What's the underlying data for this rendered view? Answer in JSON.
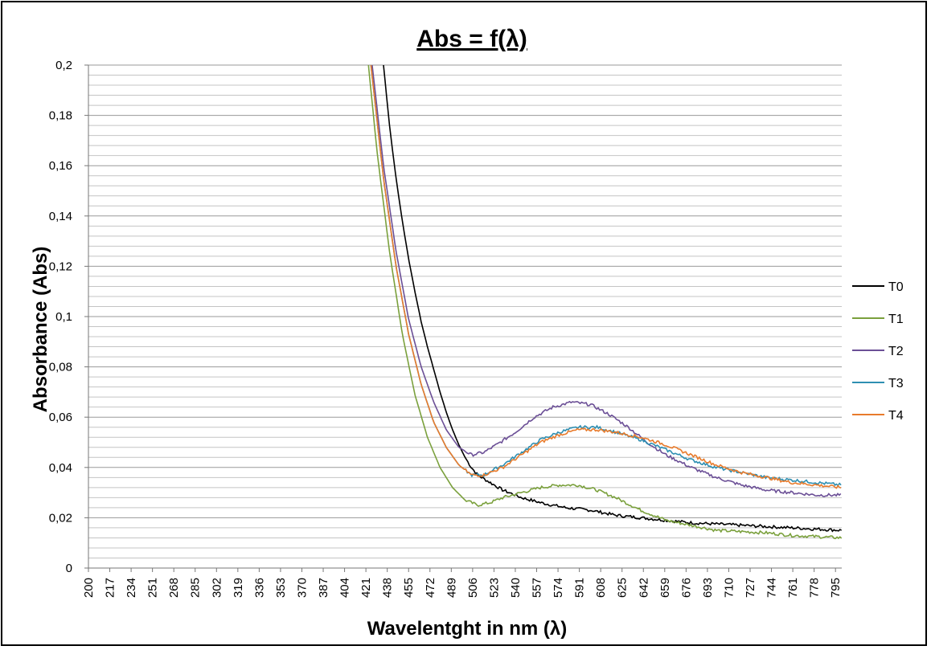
{
  "chart_data": {
    "type": "line",
    "title": "Abs = f(λ)",
    "xlabel": "Wavelentght in nm (λ)",
    "ylabel": "Absorbance (Abs)",
    "xlim": [
      200,
      800
    ],
    "ylim": [
      0,
      0.2
    ],
    "grid": true,
    "legend_position": "right",
    "x_tick_labels": [
      "200",
      "217",
      "234",
      "251",
      "268",
      "285",
      "302",
      "319",
      "336",
      "353",
      "370",
      "387",
      "404",
      "421",
      "438",
      "455",
      "472",
      "489",
      "506",
      "523",
      "540",
      "557",
      "574",
      "591",
      "608",
      "625",
      "642",
      "659",
      "676",
      "693",
      "710",
      "727",
      "744",
      "761",
      "778",
      "795"
    ],
    "y_tick_labels": [
      "0",
      "0,02",
      "0,04",
      "0,06",
      "0,08",
      "0,1",
      "0,12",
      "0,14",
      "0,16",
      "0,18",
      "0,2"
    ],
    "y_tick_values": [
      0,
      0.02,
      0.04,
      0.06,
      0.08,
      0.1,
      0.12,
      0.14,
      0.16,
      0.18,
      0.2
    ],
    "series": [
      {
        "name": "T0",
        "color": "#000000",
        "points": [
          [
            435,
            0.2
          ],
          [
            440,
            0.175
          ],
          [
            445,
            0.155
          ],
          [
            450,
            0.138
          ],
          [
            455,
            0.123
          ],
          [
            460,
            0.11
          ],
          [
            465,
            0.098
          ],
          [
            470,
            0.088
          ],
          [
            475,
            0.079
          ],
          [
            480,
            0.07
          ],
          [
            485,
            0.062
          ],
          [
            490,
            0.055
          ],
          [
            495,
            0.049
          ],
          [
            500,
            0.044
          ],
          [
            505,
            0.04
          ],
          [
            510,
            0.037
          ],
          [
            520,
            0.034
          ],
          [
            530,
            0.031
          ],
          [
            545,
            0.028
          ],
          [
            560,
            0.026
          ],
          [
            580,
            0.024
          ],
          [
            600,
            0.023
          ],
          [
            620,
            0.021
          ],
          [
            640,
            0.02
          ],
          [
            660,
            0.019
          ],
          [
            680,
            0.018
          ],
          [
            700,
            0.0175
          ],
          [
            720,
            0.017
          ],
          [
            740,
            0.0165
          ],
          [
            760,
            0.016
          ],
          [
            780,
            0.0155
          ],
          [
            800,
            0.015
          ]
        ]
      },
      {
        "name": "T1",
        "color": "#7aa03c",
        "points": [
          [
            423,
            0.2
          ],
          [
            430,
            0.165
          ],
          [
            440,
            0.125
          ],
          [
            450,
            0.093
          ],
          [
            460,
            0.069
          ],
          [
            470,
            0.052
          ],
          [
            480,
            0.04
          ],
          [
            490,
            0.032
          ],
          [
            500,
            0.027
          ],
          [
            510,
            0.025
          ],
          [
            520,
            0.026
          ],
          [
            530,
            0.028
          ],
          [
            545,
            0.03
          ],
          [
            560,
            0.032
          ],
          [
            575,
            0.033
          ],
          [
            590,
            0.033
          ],
          [
            605,
            0.031
          ],
          [
            620,
            0.028
          ],
          [
            640,
            0.023
          ],
          [
            660,
            0.019
          ],
          [
            680,
            0.017
          ],
          [
            700,
            0.015
          ],
          [
            720,
            0.0145
          ],
          [
            740,
            0.014
          ],
          [
            760,
            0.013
          ],
          [
            780,
            0.0125
          ],
          [
            800,
            0.012
          ]
        ]
      },
      {
        "name": "T2",
        "color": "#6b4f96",
        "points": [
          [
            426,
            0.2
          ],
          [
            435,
            0.16
          ],
          [
            445,
            0.126
          ],
          [
            455,
            0.099
          ],
          [
            465,
            0.08
          ],
          [
            475,
            0.066
          ],
          [
            485,
            0.055
          ],
          [
            495,
            0.048
          ],
          [
            505,
            0.045
          ],
          [
            515,
            0.046
          ],
          [
            525,
            0.049
          ],
          [
            540,
            0.054
          ],
          [
            555,
            0.06
          ],
          [
            570,
            0.064
          ],
          [
            585,
            0.066
          ],
          [
            600,
            0.065
          ],
          [
            615,
            0.061
          ],
          [
            630,
            0.056
          ],
          [
            645,
            0.05
          ],
          [
            660,
            0.045
          ],
          [
            680,
            0.04
          ],
          [
            700,
            0.036
          ],
          [
            720,
            0.033
          ],
          [
            740,
            0.031
          ],
          [
            760,
            0.03
          ],
          [
            780,
            0.029
          ],
          [
            800,
            0.029
          ]
        ]
      },
      {
        "name": "T3",
        "color": "#2e8fb2",
        "points": [
          [
            425,
            0.2
          ],
          [
            435,
            0.155
          ],
          [
            445,
            0.12
          ],
          [
            455,
            0.093
          ],
          [
            465,
            0.073
          ],
          [
            475,
            0.058
          ],
          [
            485,
            0.048
          ],
          [
            495,
            0.041
          ],
          [
            505,
            0.037
          ],
          [
            515,
            0.037
          ],
          [
            530,
            0.041
          ],
          [
            545,
            0.046
          ],
          [
            560,
            0.051
          ],
          [
            575,
            0.054
          ],
          [
            590,
            0.056
          ],
          [
            605,
            0.056
          ],
          [
            620,
            0.054
          ],
          [
            640,
            0.051
          ],
          [
            660,
            0.047
          ],
          [
            680,
            0.043
          ],
          [
            700,
            0.04
          ],
          [
            720,
            0.038
          ],
          [
            740,
            0.036
          ],
          [
            760,
            0.035
          ],
          [
            780,
            0.034
          ],
          [
            800,
            0.033
          ]
        ]
      },
      {
        "name": "T4",
        "color": "#e87b2c",
        "points": [
          [
            425,
            0.2
          ],
          [
            435,
            0.155
          ],
          [
            445,
            0.12
          ],
          [
            455,
            0.093
          ],
          [
            465,
            0.073
          ],
          [
            475,
            0.058
          ],
          [
            485,
            0.048
          ],
          [
            495,
            0.041
          ],
          [
            505,
            0.037
          ],
          [
            515,
            0.037
          ],
          [
            530,
            0.04
          ],
          [
            545,
            0.045
          ],
          [
            560,
            0.05
          ],
          [
            575,
            0.053
          ],
          [
            590,
            0.055
          ],
          [
            605,
            0.055
          ],
          [
            620,
            0.054
          ],
          [
            640,
            0.052
          ],
          [
            660,
            0.049
          ],
          [
            680,
            0.045
          ],
          [
            700,
            0.041
          ],
          [
            720,
            0.038
          ],
          [
            740,
            0.036
          ],
          [
            760,
            0.034
          ],
          [
            780,
            0.033
          ],
          [
            800,
            0.032
          ]
        ]
      }
    ]
  }
}
